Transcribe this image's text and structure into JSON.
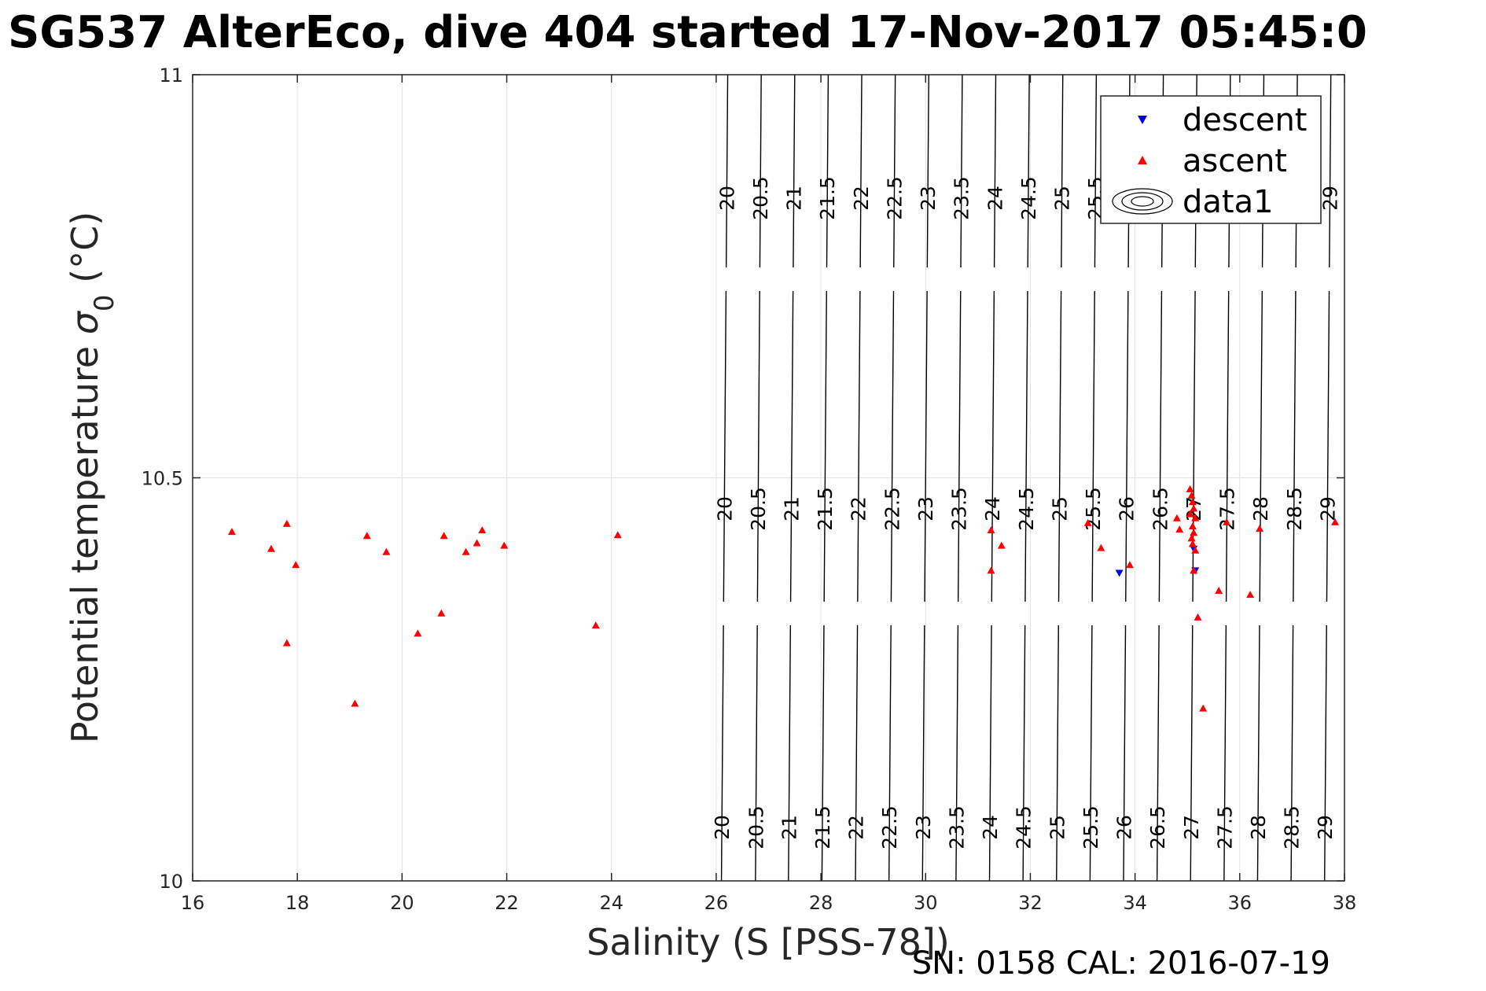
{
  "chart_data": {
    "type": "scatter",
    "title": "SG537 AlterEco, dive 404 started 17-Nov-2017 05:45:0",
    "xlabel": "Salinity (S [PSS-78])",
    "ylabel_main": "Potential temperature ",
    "ylabel_sigma": "σ",
    "ylabel_sub": "0",
    "ylabel_unit": " (°C)",
    "footer": "SN: 0158  CAL: 2016-07-19",
    "xlim": [
      16,
      38
    ],
    "ylim": [
      10,
      11
    ],
    "xticks": [
      16,
      18,
      20,
      22,
      24,
      26,
      28,
      30,
      32,
      34,
      36,
      38
    ],
    "yticks": [
      10,
      10.5,
      11
    ],
    "grid": true,
    "legend_position": "top-right",
    "legend": [
      {
        "name": "descent",
        "marker": "triangle-down",
        "color": "#0000ff"
      },
      {
        "name": "ascent",
        "marker": "triangle-up",
        "color": "#ff0000"
      },
      {
        "name": "data1",
        "marker": "contour"
      }
    ],
    "series": [
      {
        "name": "descent",
        "color": "#0000ff",
        "marker": "triangle-down",
        "x": [
          33.7,
          35.12,
          35.15
        ],
        "y": [
          10.382,
          10.412,
          10.385
        ]
      },
      {
        "name": "ascent",
        "color": "#ff0000",
        "marker": "triangle-up",
        "x": [
          16.75,
          17.5,
          17.8,
          17.97,
          17.8,
          19.1,
          19.33,
          19.7,
          20.3,
          20.75,
          20.8,
          21.22,
          21.43,
          21.53,
          21.95,
          23.7,
          24.12,
          31.25,
          31.45,
          31.25,
          33.1,
          33.35,
          33.9,
          34.8,
          34.85,
          35.05,
          35.08,
          35.1,
          35.12,
          35.05,
          35.15,
          35.1,
          35.12,
          35.08,
          35.1,
          35.15,
          35.12,
          35.2,
          35.3,
          35.6,
          35.75,
          36.2,
          36.38,
          37.82
        ],
        "y": [
          10.433,
          10.412,
          10.443,
          10.392,
          10.295,
          10.22,
          10.428,
          10.408,
          10.307,
          10.332,
          10.428,
          10.408,
          10.419,
          10.435,
          10.416,
          10.317,
          10.429,
          10.435,
          10.416,
          10.385,
          10.444,
          10.413,
          10.392,
          10.45,
          10.436,
          10.486,
          10.478,
          10.47,
          10.462,
          10.455,
          10.45,
          10.44,
          10.432,
          10.425,
          10.418,
          10.41,
          10.385,
          10.327,
          10.214,
          10.36,
          10.445,
          10.355,
          10.437,
          10.445
        ]
      }
    ],
    "contours": {
      "levels": [
        "20",
        "20.5",
        "21",
        "21.5",
        "22",
        "22.5",
        "23",
        "23.5",
        "24",
        "24.5",
        "25",
        "25.5",
        "26",
        "26.5",
        "27",
        "27.5",
        "28",
        "28.5",
        "29"
      ],
      "x_at_top": [
        26.22,
        26.86,
        27.5,
        28.14,
        28.78,
        29.42,
        30.06,
        30.7,
        31.34,
        31.98,
        32.62,
        33.26,
        33.9,
        34.54,
        35.18,
        35.82,
        36.46,
        37.1,
        37.74
      ],
      "x_at_bottom": [
        26.1,
        26.75,
        27.38,
        28.02,
        28.66,
        29.3,
        29.94,
        30.58,
        31.22,
        31.86,
        32.5,
        33.14,
        33.78,
        34.42,
        35.06,
        35.7,
        36.34,
        36.98,
        37.62
      ]
    }
  }
}
